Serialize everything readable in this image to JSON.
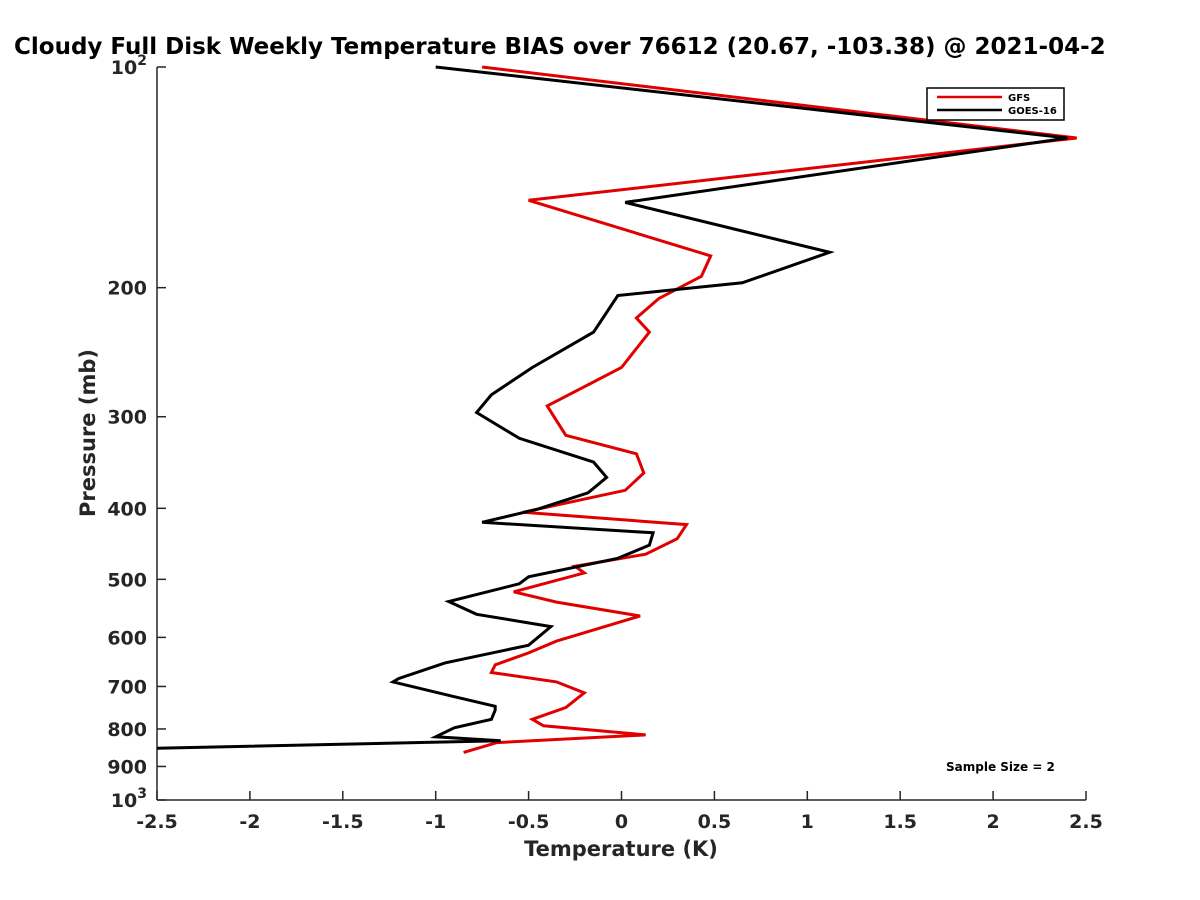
{
  "chart_data": {
    "type": "line",
    "title": "Cloudy Full Disk Weekly Temperature BIAS over 76612 (20.67, -103.38) @ 2021-04-2",
    "xlabel": "Temperature (K)",
    "ylabel": "Pressure (mb)",
    "xlim": [
      -2.5,
      2.5
    ],
    "ylim": [
      100,
      1000
    ],
    "yscale": "log",
    "y_reversed": true,
    "x_ticks": [
      -2.5,
      -2,
      -1.5,
      -1,
      -0.5,
      0,
      0.5,
      1,
      1.5,
      2,
      2.5
    ],
    "x_tick_labels": [
      "-2.5",
      "-2",
      "-1.5",
      "-1",
      "-0.5",
      "0",
      "0.5",
      "1",
      "1.5",
      "2",
      "2.5"
    ],
    "y_ticks": [
      100,
      200,
      300,
      400,
      500,
      600,
      700,
      800,
      900,
      1000
    ],
    "y_tick_labels": [
      {
        "base": "10",
        "exp": "2"
      },
      {
        "base": "200",
        "exp": ""
      },
      {
        "base": "300",
        "exp": ""
      },
      {
        "base": "400",
        "exp": ""
      },
      {
        "base": "500",
        "exp": ""
      },
      {
        "base": "600",
        "exp": ""
      },
      {
        "base": "700",
        "exp": ""
      },
      {
        "base": "800",
        "exp": ""
      },
      {
        "base": "900",
        "exp": ""
      },
      {
        "base": "10",
        "exp": "3"
      }
    ],
    "grid": false,
    "legend_position": "top-right",
    "annotation": "Sample Size = 2",
    "series": [
      {
        "name": "GFS",
        "color": "#e00000",
        "points": [
          [
            -0.75,
            100
          ],
          [
            2.45,
            125
          ],
          [
            -0.5,
            152
          ],
          [
            0.48,
            181
          ],
          [
            0.43,
            193
          ],
          [
            0.2,
            207
          ],
          [
            0.08,
            220
          ],
          [
            0.15,
            230
          ],
          [
            0.0,
            257
          ],
          [
            -0.4,
            290
          ],
          [
            -0.3,
            318
          ],
          [
            0.08,
            337
          ],
          [
            0.12,
            358
          ],
          [
            0.02,
            378
          ],
          [
            -0.53,
            405
          ],
          [
            0.35,
            421
          ],
          [
            0.3,
            440
          ],
          [
            0.13,
            462
          ],
          [
            -0.25,
            480
          ],
          [
            -0.2,
            490
          ],
          [
            -0.58,
            520
          ],
          [
            -0.35,
            537
          ],
          [
            0.1,
            561
          ],
          [
            -0.35,
            607
          ],
          [
            -0.5,
            630
          ],
          [
            -0.68,
            654
          ],
          [
            -0.7,
            670
          ],
          [
            -0.35,
            690
          ],
          [
            -0.2,
            714
          ],
          [
            -0.3,
            748
          ],
          [
            -0.48,
            776
          ],
          [
            -0.42,
            792
          ],
          [
            0.13,
            815
          ],
          [
            -0.67,
            835
          ],
          [
            -0.85,
            861
          ]
        ]
      },
      {
        "name": "GOES-16",
        "color": "#000000",
        "points": [
          [
            -1.0,
            100
          ],
          [
            2.4,
            125
          ],
          [
            0.02,
            153
          ],
          [
            1.12,
            179
          ],
          [
            0.65,
            197
          ],
          [
            -0.02,
            205
          ],
          [
            -0.15,
            230
          ],
          [
            -0.48,
            257
          ],
          [
            -0.7,
            280
          ],
          [
            -0.78,
            296
          ],
          [
            -0.55,
            321
          ],
          [
            -0.15,
            346
          ],
          [
            -0.08,
            363
          ],
          [
            -0.18,
            381
          ],
          [
            -0.45,
            401
          ],
          [
            -0.75,
            418
          ],
          [
            0.17,
            432
          ],
          [
            0.15,
            449
          ],
          [
            -0.02,
            468
          ],
          [
            -0.5,
            496
          ],
          [
            -0.55,
            507
          ],
          [
            -0.93,
            536
          ],
          [
            -0.78,
            558
          ],
          [
            -0.38,
            580
          ],
          [
            -0.5,
            615
          ],
          [
            -0.95,
            650
          ],
          [
            -1.2,
            683
          ],
          [
            -1.23,
            690
          ],
          [
            -0.9,
            723
          ],
          [
            -0.68,
            745
          ],
          [
            -0.68,
            754
          ],
          [
            -0.7,
            776
          ],
          [
            -0.9,
            797
          ],
          [
            -1.0,
            820
          ],
          [
            -0.65,
            830
          ],
          [
            -2.5,
            850
          ]
        ]
      }
    ]
  }
}
